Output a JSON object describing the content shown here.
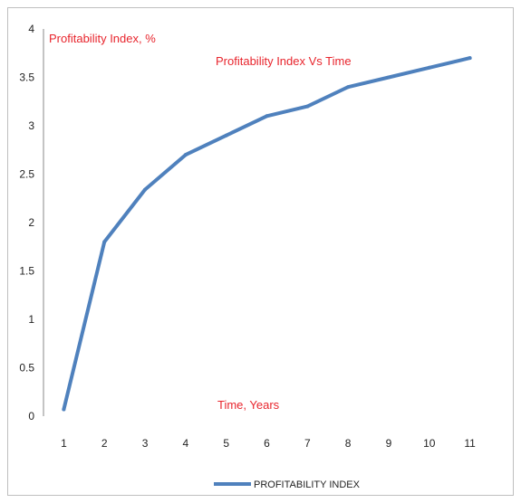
{
  "chart_data": {
    "type": "line",
    "title": "Profitability Index Vs Time",
    "xlabel": "Time, Years",
    "ylabel": "Profitability Index, %",
    "x": [
      1,
      2,
      3,
      4,
      5,
      6,
      7,
      8,
      9,
      10,
      11
    ],
    "series": [
      {
        "name": "PROFITABILITY INDEX",
        "values": [
          0.07,
          1.8,
          2.34,
          2.7,
          2.9,
          3.1,
          3.2,
          3.4,
          3.5,
          3.6,
          3.7
        ]
      }
    ],
    "ylim": [
      0,
      4
    ],
    "y_ticks": [
      "0",
      "0.5",
      "1",
      "1.5",
      "2",
      "2.5",
      "3",
      "3.5",
      "4"
    ],
    "x_ticks": [
      "1",
      "2",
      "3",
      "4",
      "5",
      "6",
      "7",
      "8",
      "9",
      "10",
      "11"
    ],
    "grid": false,
    "legend_position": "bottom",
    "colors": {
      "series": "#4f81bd",
      "label_text": "#e8252d",
      "axis": "#888888"
    }
  }
}
